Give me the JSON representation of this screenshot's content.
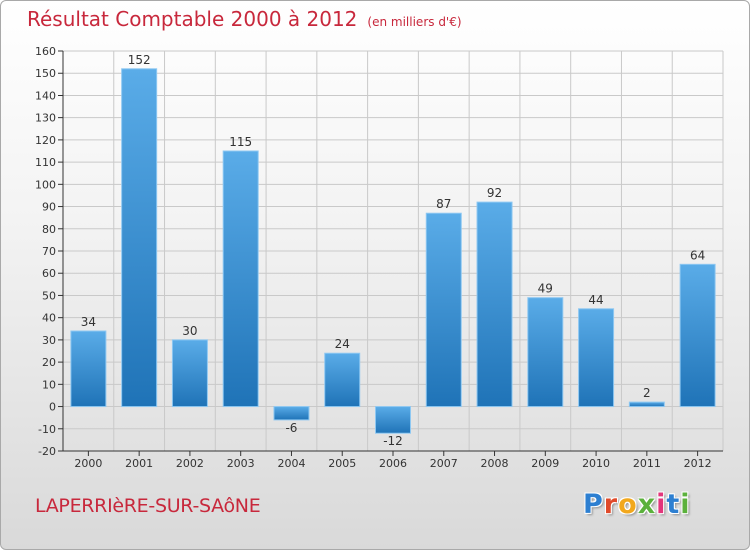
{
  "header": {
    "title": "Résultat Comptable 2000 à 2012",
    "subtitle": "(en milliers d'€)"
  },
  "footer": {
    "commune": "LAPERRIèRE-SUR-SAôNE",
    "logo": "Proxiti",
    "logo_letters": [
      "P",
      "r",
      "o",
      "x",
      "i",
      "t",
      "i"
    ]
  },
  "colors": {
    "bar_light": "#5aace8",
    "bar_dark": "#1f73b7",
    "title": "#c8283c",
    "grid": "#c9c9c9"
  },
  "chart_data": {
    "type": "bar",
    "title": "Résultat Comptable 2000 à 2012",
    "subtitle": "(en milliers d'€)",
    "xlabel": "",
    "ylabel": "",
    "categories": [
      "2000",
      "2001",
      "2002",
      "2003",
      "2004",
      "2005",
      "2006",
      "2007",
      "2008",
      "2009",
      "2010",
      "2011",
      "2012"
    ],
    "values": [
      34,
      152,
      30,
      115,
      -6,
      24,
      -12,
      87,
      92,
      49,
      44,
      2,
      64
    ],
    "ylim": [
      -20,
      160
    ],
    "yticks": [
      -20,
      -10,
      0,
      10,
      20,
      30,
      40,
      50,
      60,
      70,
      80,
      90,
      100,
      110,
      120,
      130,
      140,
      150,
      160
    ],
    "grid": true,
    "legend": "none"
  }
}
